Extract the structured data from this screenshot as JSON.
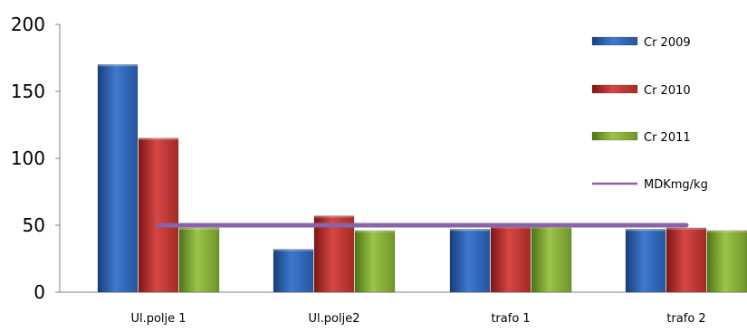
{
  "chart_data": {
    "type": "bar",
    "categories": [
      "Ul.polje 1",
      "Ul.polje2",
      "trafo 1",
      "trafo 2"
    ],
    "series": [
      {
        "name": "Cr 2009",
        "values": [
          170,
          32,
          47,
          47
        ],
        "color": "#3a6fbf"
      },
      {
        "name": "Cr 2010",
        "values": [
          115,
          57,
          49,
          48
        ],
        "color": "#c0403c"
      },
      {
        "name": "Cr 2011",
        "values": [
          48,
          46,
          49,
          46
        ],
        "color": "#8bb33f"
      }
    ],
    "lines": [
      {
        "name": "MDKmg/kg",
        "value": 50,
        "color": "#8a63a8"
      }
    ],
    "ylim": [
      0,
      200
    ],
    "yticks": [
      0,
      50,
      100,
      150,
      200
    ],
    "grid": false,
    "legend": "right"
  }
}
